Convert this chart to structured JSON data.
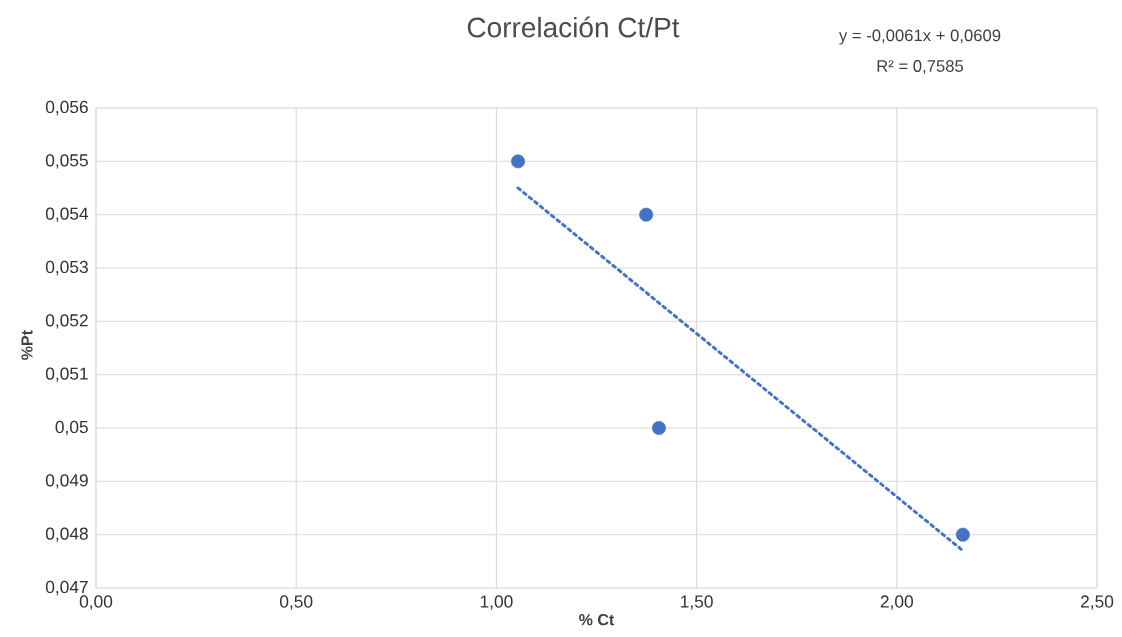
{
  "chart_data": {
    "type": "scatter",
    "title": "Correlación Ct/Pt",
    "xlabel": "% Ct",
    "ylabel": "%Pt",
    "annotations": [
      "y = -0,0061x + 0,0609",
      "R² = 0,7585"
    ],
    "series": [
      {
        "type": "scatter",
        "color": "#4472c4",
        "x": [
          1.054,
          1.374,
          1.406,
          2.165
        ],
        "values": [
          0.055,
          0.054,
          0.05,
          0.048
        ],
        "marker": "circle"
      },
      {
        "type": "line",
        "color": "#4472c4",
        "x": [
          1.054,
          2.165
        ],
        "values": [
          0.0545,
          0.0477
        ],
        "line_style": "dotted",
        "marker": "none"
      }
    ],
    "xlim": [
      0,
      2.5
    ],
    "ylim": [
      0.047,
      0.056
    ],
    "xticks": [
      {
        "value": 0,
        "label": "0,00"
      },
      {
        "value": 0.5,
        "label": "0,50"
      },
      {
        "value": 1,
        "label": "1,00"
      },
      {
        "value": 1.5,
        "label": "1,50"
      },
      {
        "value": 2,
        "label": "2,00"
      },
      {
        "value": 2.5,
        "label": "2,50"
      }
    ],
    "yticks": [
      {
        "value": 0.047,
        "label": "0,047"
      },
      {
        "value": 0.048,
        "label": "0,048"
      },
      {
        "value": 0.049,
        "label": "0,049"
      },
      {
        "value": 0.05,
        "label": "0,05"
      },
      {
        "value": 0.051,
        "label": "0,051"
      },
      {
        "value": 0.052,
        "label": "0,052"
      },
      {
        "value": 0.053,
        "label": "0,053"
      },
      {
        "value": 0.054,
        "label": "0,054"
      },
      {
        "value": 0.055,
        "label": "0,055"
      },
      {
        "value": 0.056,
        "label": "0,056"
      }
    ],
    "grid": true
  }
}
